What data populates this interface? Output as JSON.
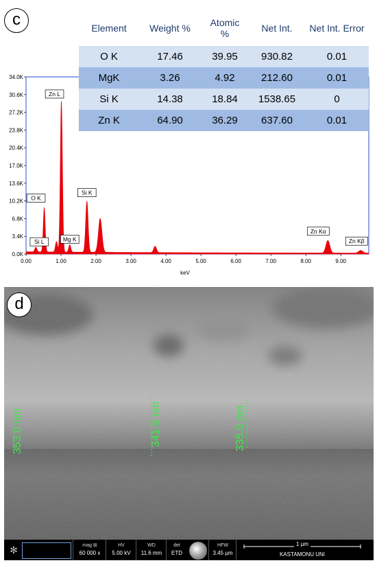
{
  "panel_c": {
    "letter": "c",
    "table": {
      "headers": [
        "Element",
        "Weight %",
        "Atomic\n%",
        "Net Int.",
        "Net Int. Error"
      ],
      "rows": [
        [
          "O K",
          "17.46",
          "39.95",
          "930.82",
          "0.01"
        ],
        [
          "MgK",
          "3.26",
          "4.92",
          "212.60",
          "0.01"
        ],
        [
          "Si K",
          "14.38",
          "18.84",
          "1538.65",
          "0"
        ],
        [
          "Zn K",
          "64.90",
          "36.29",
          "637.60",
          "0.01"
        ]
      ]
    }
  },
  "chart_data": {
    "type": "line",
    "title": "",
    "xlabel": "keV",
    "ylabel": "",
    "xlim": [
      0,
      9.8
    ],
    "ylim": [
      0,
      34000
    ],
    "x_ticks": [
      "0.00",
      "1.00",
      "2.00",
      "3.00",
      "4.00",
      "5.00",
      "6.00",
      "7.00",
      "8.00",
      "9.00"
    ],
    "y_ticks": [
      "0.0K",
      "3.4K",
      "6.8K",
      "10.2K",
      "13.6K",
      "17.0K",
      "20.4K",
      "23.8K",
      "27.2K",
      "30.6K",
      "34.0K"
    ],
    "series": [
      {
        "values_description": "EDS spectrum counts",
        "peaks": [
          {
            "x": 0.28,
            "y": 900,
            "w": 0.03
          },
          {
            "x": 0.52,
            "y": 8500,
            "w": 0.028
          },
          {
            "x": 0.87,
            "y": 2000,
            "w": 0.03
          },
          {
            "x": 1.01,
            "y": 29000,
            "w": 0.03
          },
          {
            "x": 1.25,
            "y": 1400,
            "w": 0.03
          },
          {
            "x": 1.74,
            "y": 9800,
            "w": 0.035
          },
          {
            "x": 2.12,
            "y": 6500,
            "w": 0.05
          },
          {
            "x": 3.69,
            "y": 1200,
            "w": 0.04
          },
          {
            "x": 8.63,
            "y": 2400,
            "w": 0.055
          },
          {
            "x": 9.57,
            "y": 500,
            "w": 0.06
          }
        ],
        "background": 300
      }
    ],
    "peak_labels": [
      {
        "text": "Si L",
        "x": 0.28,
        "y": 900
      },
      {
        "text": "O  K",
        "x": 0.52,
        "y": 8500
      },
      {
        "text": "Zn L",
        "x": 1.01,
        "y": 29000
      },
      {
        "text": "Mg K",
        "x": 1.25,
        "y": 1400
      },
      {
        "text": "Si K",
        "x": 1.74,
        "y": 9800
      },
      {
        "text": "Zn Kα",
        "x": 8.63,
        "y": 2400
      },
      {
        "text": "Zn Kβ",
        "x": 9.57,
        "y": 500
      }
    ],
    "colors": {
      "spectrum": "#e8000b",
      "frame": "#2a4bd0"
    }
  },
  "panel_d": {
    "letter": "d",
    "measurements": [
      {
        "label": "353.0 nm",
        "value_nm": 353.0
      },
      {
        "label": "341.9 nm",
        "value_nm": 341.9
      },
      {
        "label": "335.0 nm",
        "value_nm": 335.0
      }
    ],
    "info_bar": {
      "mag_head": "mag ⊞",
      "mag_val": "60 000 x",
      "hv_head": "HV",
      "hv_val": "5.00 kV",
      "wd_head": "WD",
      "wd_val": "11.6 mm",
      "det_head": "det",
      "det_val": "ETD",
      "hfw_head": "HFW",
      "hfw_val": "3.45 µm",
      "scale_label": "1 µm",
      "lab": "KASTAMONU UNI"
    }
  }
}
